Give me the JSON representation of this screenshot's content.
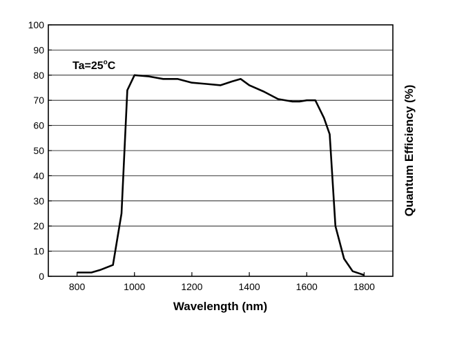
{
  "chart_data": {
    "type": "line",
    "title": "",
    "xlabel": "Wavelength (nm)",
    "ylabel": "Quantum Efficiency (%)",
    "xlim": [
      700,
      1900
    ],
    "ylim": [
      0,
      100
    ],
    "xticks": [
      800,
      1000,
      1200,
      1400,
      1600,
      1800
    ],
    "yticks": [
      0,
      10,
      20,
      30,
      40,
      50,
      60,
      70,
      80,
      90,
      100
    ],
    "grid": "horizontal",
    "annotation": {
      "prefix": "Ta=25",
      "degree": "o",
      "suffix": "C"
    },
    "series": [
      {
        "color": "#000000",
        "x": [
          800,
          850,
          880,
          925,
          955,
          975,
          1000,
          1050,
          1100,
          1150,
          1200,
          1250,
          1300,
          1340,
          1370,
          1400,
          1450,
          1500,
          1550,
          1575,
          1600,
          1630,
          1660,
          1680,
          1700,
          1730,
          1760,
          1800
        ],
        "y": [
          1.5,
          1.5,
          2.5,
          4.5,
          25,
          74,
          80,
          79.5,
          78.5,
          78.5,
          77,
          76.5,
          76,
          77.5,
          78.5,
          76,
          73.5,
          70.5,
          69.5,
          69.5,
          70,
          70,
          63,
          56.5,
          20,
          7,
          2,
          0.5
        ]
      }
    ]
  }
}
